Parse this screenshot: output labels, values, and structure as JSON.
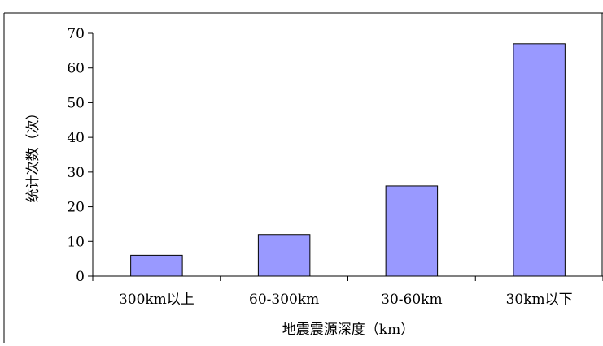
{
  "chart_data": {
    "type": "bar",
    "categories": [
      "300km以上",
      "60-300km",
      "30-60km",
      "30km以下"
    ],
    "values": [
      6,
      12,
      26,
      67
    ],
    "xlabel": "地震震源深度（km）",
    "ylabel": "统计次数（次）",
    "ylim": [
      0,
      70
    ],
    "yticks": [
      0,
      10,
      20,
      30,
      40,
      50,
      60,
      70
    ],
    "bar_color": "#9999ff",
    "bar_stroke": "#000000",
    "grid": false,
    "legend": "none"
  }
}
